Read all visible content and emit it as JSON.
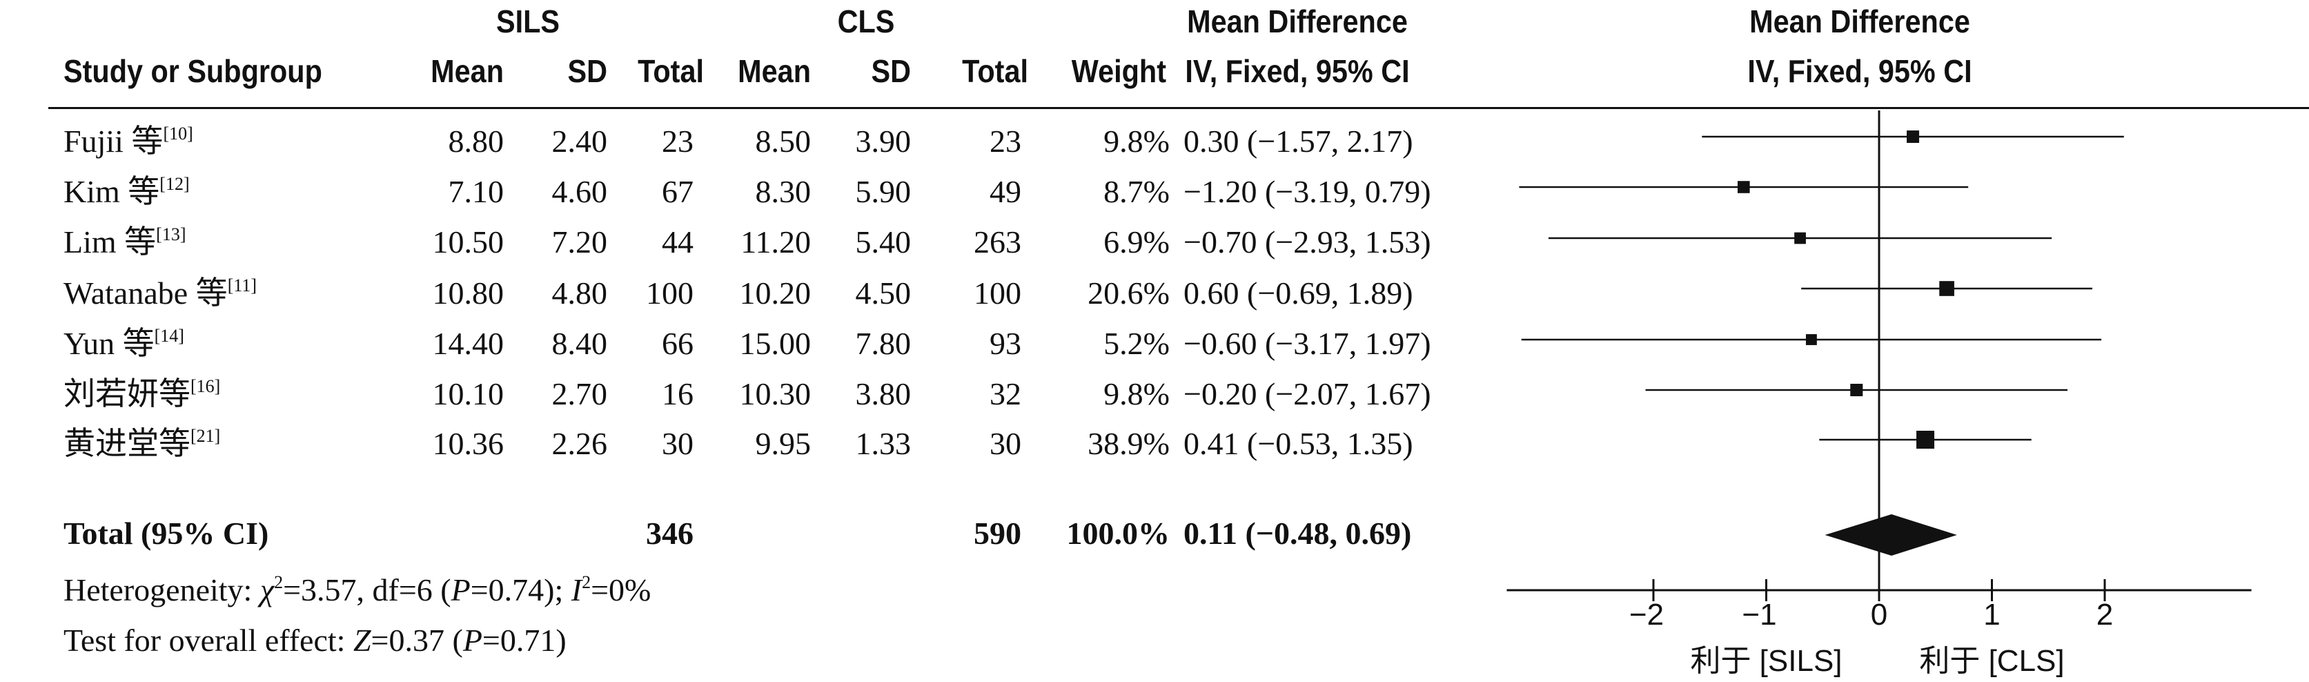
{
  "header": {
    "group1": "SILS",
    "group2": "CLS",
    "md_title": "Mean Difference",
    "md_subtitle": "IV, Fixed, 95% CI",
    "plot_title": "Mean Difference",
    "plot_subtitle": "IV, Fixed, 95% CI",
    "col_study": "Study or Subgroup",
    "col_mean1": "Mean",
    "col_sd1": "SD",
    "col_total1": "Total",
    "col_mean2": "Mean",
    "col_sd2": "SD",
    "col_total2": "Total",
    "col_weight": "Weight"
  },
  "rows": [
    {
      "study": "Fujii 等",
      "ref": "[10]",
      "mean1": "8.80",
      "sd1": "2.40",
      "n1": "23",
      "mean2": "8.50",
      "sd2": "3.90",
      "n2": "23",
      "weight": "9.8%",
      "ci": "0.30 (−1.57, 2.17)"
    },
    {
      "study": "Kim 等",
      "ref": "[12]",
      "mean1": "7.10",
      "sd1": "4.60",
      "n1": "67",
      "mean2": "8.30",
      "sd2": "5.90",
      "n2": "49",
      "weight": "8.7%",
      "ci": "−1.20 (−3.19, 0.79)"
    },
    {
      "study": "Lim 等",
      "ref": "[13]",
      "mean1": "10.50",
      "sd1": "7.20",
      "n1": "44",
      "mean2": "11.20",
      "sd2": "5.40",
      "n2": "263",
      "weight": "6.9%",
      "ci": "−0.70 (−2.93, 1.53)"
    },
    {
      "study": "Watanabe 等",
      "ref": "[11]",
      "mean1": "10.80",
      "sd1": "4.80",
      "n1": "100",
      "mean2": "10.20",
      "sd2": "4.50",
      "n2": "100",
      "weight": "20.6%",
      "ci": "0.60 (−0.69, 1.89)"
    },
    {
      "study": "Yun 等",
      "ref": "[14]",
      "mean1": "14.40",
      "sd1": "8.40",
      "n1": "66",
      "mean2": "15.00",
      "sd2": "7.80",
      "n2": "93",
      "weight": "5.2%",
      "ci": "−0.60 (−3.17, 1.97)"
    },
    {
      "study": "刘若妍等",
      "ref": "[16]",
      "mean1": "10.10",
      "sd1": "2.70",
      "n1": "16",
      "mean2": "10.30",
      "sd2": "3.80",
      "n2": "32",
      "weight": "9.8%",
      "ci": "−0.20 (−2.07, 1.67)"
    },
    {
      "study": "黄进堂等",
      "ref": "[21]",
      "mean1": "10.36",
      "sd1": "2.26",
      "n1": "30",
      "mean2": "9.95",
      "sd2": "1.33",
      "n2": "30",
      "weight": "38.9%",
      "ci": "0.41 (−0.53, 1.35)"
    }
  ],
  "total": {
    "label": "Total (95% CI)",
    "n1": "346",
    "n2": "590",
    "weight": "100.0%",
    "ci": "0.11 (−0.48, 0.69)"
  },
  "footer": {
    "het_prefix": "Heterogeneity: ",
    "het_chi_sym": "χ",
    "het_chi_sup": "2",
    "het_mid": "=3.57, df=6 (",
    "het_p": "P",
    "het_mid2": "=0.74); ",
    "het_i": "I",
    "het_i_sup": "2",
    "het_end": "=0%",
    "oe_prefix": "Test for overall effect: ",
    "oe_z": "Z",
    "oe_mid": "=0.37 (",
    "oe_p": "P",
    "oe_end": "=0.71)"
  },
  "chart_data": {
    "type": "forest",
    "xlim": [
      -3.3,
      3.3
    ],
    "xticks": [
      -2,
      -1,
      0,
      1,
      2
    ],
    "xtick_labels": [
      "−2",
      "−1",
      "0",
      "1",
      "2"
    ],
    "favours_left": "利于 [SILS]",
    "favours_right": "利于 [CLS]",
    "studies": [
      {
        "label": "Fujii 等[10]",
        "estimate": 0.3,
        "lower": -1.57,
        "upper": 2.17,
        "weight": 9.8
      },
      {
        "label": "Kim 等[12]",
        "estimate": -1.2,
        "lower": -3.19,
        "upper": 0.79,
        "weight": 8.7
      },
      {
        "label": "Lim 等[13]",
        "estimate": -0.7,
        "lower": -2.93,
        "upper": 1.53,
        "weight": 6.9
      },
      {
        "label": "Watanabe 等[11]",
        "estimate": 0.6,
        "lower": -0.69,
        "upper": 1.89,
        "weight": 20.6
      },
      {
        "label": "Yun 等[14]",
        "estimate": -0.6,
        "lower": -3.17,
        "upper": 1.97,
        "weight": 5.2
      },
      {
        "label": "刘若妍等[16]",
        "estimate": -0.2,
        "lower": -2.07,
        "upper": 1.67,
        "weight": 9.8
      },
      {
        "label": "黄进堂等[21]",
        "estimate": 0.41,
        "lower": -0.53,
        "upper": 1.35,
        "weight": 38.9
      }
    ],
    "pooled": {
      "estimate": 0.11,
      "lower": -0.48,
      "upper": 0.69
    }
  }
}
